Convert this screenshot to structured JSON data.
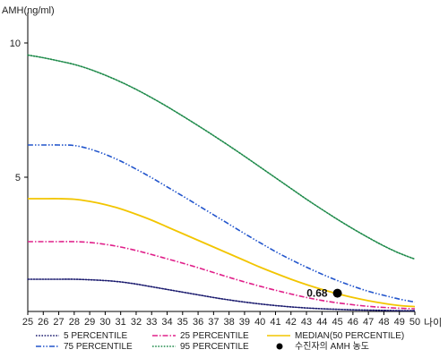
{
  "chart_data": {
    "type": "line",
    "ylabel": "AMH(ng/ml)",
    "xlabel": "나이",
    "x": [
      25,
      26,
      27,
      28,
      29,
      30,
      31,
      32,
      33,
      34,
      35,
      36,
      37,
      38,
      39,
      40,
      41,
      42,
      43,
      44,
      45,
      46,
      47,
      48,
      49,
      50
    ],
    "xlim": [
      25,
      50
    ],
    "ylim": [
      0,
      11
    ],
    "yticks": [
      5,
      10
    ],
    "grid": false,
    "legend_position": "bottom",
    "series": [
      {
        "name": "5 PERCENTILE",
        "color": "#1a1a6e",
        "dash": "dotted",
        "values": [
          1.2,
          1.2,
          1.2,
          1.2,
          1.18,
          1.15,
          1.1,
          1.02,
          0.92,
          0.82,
          0.72,
          0.62,
          0.52,
          0.43,
          0.35,
          0.28,
          0.22,
          0.17,
          0.13,
          0.1,
          0.08,
          0.06,
          0.05,
          0.04,
          0.03,
          0.03
        ]
      },
      {
        "name": "25 PERCENTILE",
        "color": "#e0208a",
        "dash": "dashdot",
        "values": [
          2.6,
          2.6,
          2.6,
          2.6,
          2.57,
          2.5,
          2.4,
          2.27,
          2.12,
          1.96,
          1.8,
          1.63,
          1.45,
          1.27,
          1.1,
          0.94,
          0.79,
          0.65,
          0.52,
          0.41,
          0.32,
          0.25,
          0.19,
          0.15,
          0.12,
          0.1
        ]
      },
      {
        "name": "MEDIAN(50 PERCENTILE)",
        "color": "#f2c500",
        "dash": "solid",
        "values": [
          4.2,
          4.2,
          4.2,
          4.18,
          4.1,
          3.98,
          3.82,
          3.62,
          3.4,
          3.15,
          2.9,
          2.65,
          2.4,
          2.15,
          1.9,
          1.65,
          1.42,
          1.2,
          1.0,
          0.82,
          0.66,
          0.52,
          0.4,
          0.3,
          0.22,
          0.18
        ]
      },
      {
        "name": "75 PERCENTILE",
        "color": "#2255cc",
        "dash": "dashdotdot",
        "values": [
          6.2,
          6.2,
          6.2,
          6.18,
          6.05,
          5.85,
          5.6,
          5.3,
          4.98,
          4.64,
          4.3,
          3.95,
          3.6,
          3.25,
          2.9,
          2.56,
          2.23,
          1.93,
          1.65,
          1.39,
          1.15,
          0.94,
          0.75,
          0.6,
          0.46,
          0.35
        ]
      },
      {
        "name": "95 PERCENTILE",
        "color": "#1e8a4a",
        "dash": "dotted",
        "values": [
          9.55,
          9.45,
          9.33,
          9.2,
          9.02,
          8.8,
          8.55,
          8.27,
          7.96,
          7.63,
          7.28,
          6.92,
          6.55,
          6.17,
          5.78,
          5.38,
          4.98,
          4.58,
          4.18,
          3.8,
          3.43,
          3.08,
          2.75,
          2.44,
          2.17,
          1.95
        ]
      }
    ],
    "marker": {
      "name": "수진자의 AMH 농도",
      "x": 45,
      "y": 0.68,
      "label": "0.68",
      "color": "#000000"
    }
  }
}
